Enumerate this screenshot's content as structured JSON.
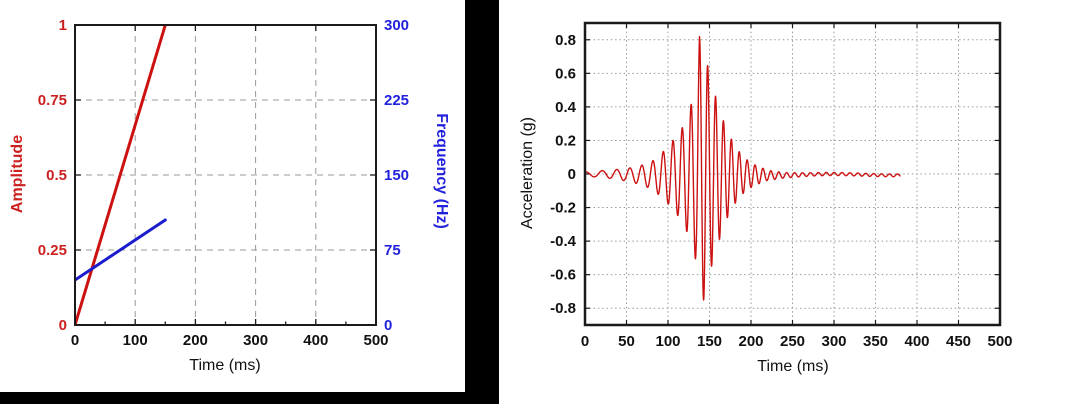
{
  "canvas": {
    "background": "#ffffff",
    "left_panel_background": "#000000"
  },
  "chart_data": [
    {
      "id": "sweep-profile",
      "type": "line",
      "title": "",
      "xlabel": "Time (ms)",
      "ylabel_left": "Amplitude",
      "ylabel_right": "Frequency (Hz)",
      "xlim": [
        0,
        500
      ],
      "xticks": [
        0,
        100,
        200,
        300,
        400,
        500
      ],
      "x_minor_step_ms": 50,
      "ylim_left": [
        0,
        1
      ],
      "yticks_left": [
        "0",
        "0.25",
        "0.5",
        "0.75",
        "1"
      ],
      "ytick_values_left": [
        0,
        0.25,
        0.5,
        0.75,
        1
      ],
      "ylim_right": [
        0,
        300
      ],
      "yticks_right": [
        "0",
        "75",
        "150",
        "225",
        "300"
      ],
      "ytick_values_right": [
        0,
        75,
        150,
        225,
        300
      ],
      "grid": "dashed",
      "grid_color": "#999999",
      "axis_text_color_left": "#cc2020",
      "axis_text_color_right": "#2222dd",
      "tick_text_color_x": "#111111",
      "series": [
        {
          "name": "Amplitude",
          "axis": "left",
          "color": "#cc1111",
          "x": [
            0,
            150
          ],
          "y": [
            0,
            1
          ]
        },
        {
          "name": "Frequency (Hz)",
          "axis": "right",
          "color": "#1c1ccf",
          "x": [
            0,
            150
          ],
          "y": [
            45,
            105
          ]
        }
      ]
    },
    {
      "id": "acceleration-record",
      "type": "line",
      "title": "",
      "xlabel": "Time (ms)",
      "ylabel": "Acceleration (g)",
      "xlim": [
        0,
        500
      ],
      "xticks": [
        0,
        50,
        100,
        150,
        200,
        250,
        300,
        350,
        400,
        450,
        500
      ],
      "ylim": [
        -0.9,
        0.9
      ],
      "yticks": [
        "0.8",
        "0.6",
        "0.4",
        "0.2",
        "0",
        "-0.2",
        "-0.4",
        "-0.6",
        "-0.8"
      ],
      "ytick_values": [
        0.8,
        0.6,
        0.4,
        0.2,
        0,
        -0.2,
        -0.4,
        -0.6,
        -0.8
      ],
      "grid": "dotted",
      "grid_color": "#999999",
      "tick_text_color": "#111111",
      "series": [
        {
          "name": "Acceleration",
          "color": "#cc1111",
          "signal": {
            "kind": "amplitude-modulated sine sweep",
            "f_start_hz": 45,
            "f_end_hz": 105,
            "sweep_end_ms": 150,
            "record_end_ms": 380,
            "phase_offset_rad": 1.453,
            "peak": {
              "t_ms": 138,
              "g": 0.82
            },
            "trough": {
              "t_ms": 143,
              "g": -0.75
            },
            "envelope_t_ms": [
              0,
              20,
              40,
              55,
              66,
              80,
              90,
              100,
              110,
              120,
              128,
              134,
              138,
              143,
              149,
              155,
              160,
              168,
              175,
              185,
              195,
              205,
              220,
              240,
              270,
              320,
              380
            ],
            "envelope_g": [
              0.013,
              0.02,
              0.03,
              0.042,
              0.055,
              0.08,
              0.12,
              0.17,
              0.23,
              0.3,
              0.42,
              0.52,
              0.82,
              0.75,
              0.62,
              0.5,
              0.42,
              0.3,
              0.22,
              0.14,
              0.09,
              0.06,
              0.03,
              0.016,
              0.01,
              0.009,
              0.008
            ]
          }
        }
      ]
    }
  ]
}
